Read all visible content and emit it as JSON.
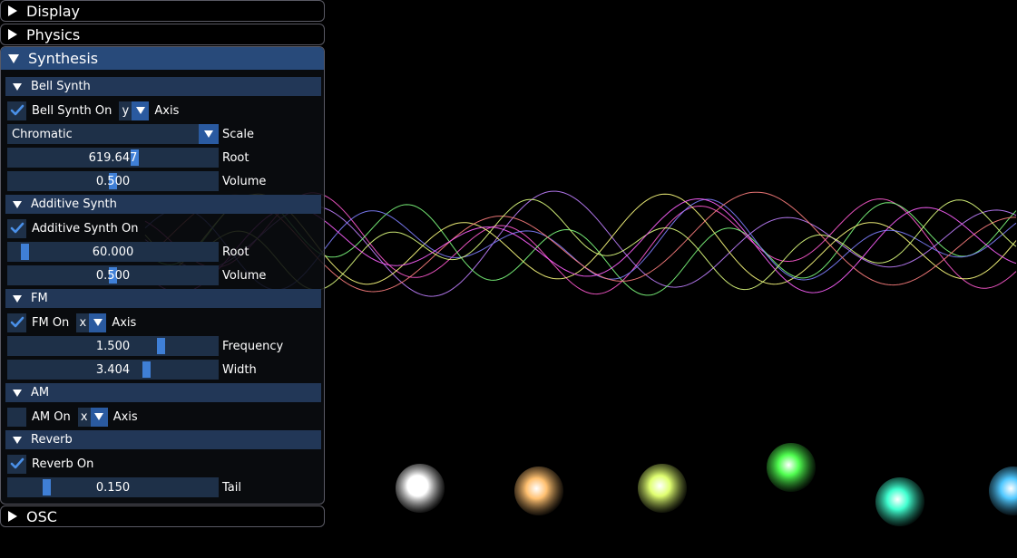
{
  "panels": {
    "display": "Display",
    "physics": "Physics",
    "synthesis": "Synthesis",
    "osc": "OSC"
  },
  "bell_synth": {
    "header": "Bell Synth",
    "enabled": true,
    "on_label": "Bell Synth On",
    "axis_value": "y",
    "axis_label": "Axis",
    "scale_value": "Chromatic",
    "scale_label": "Scale",
    "root_value": "619.647",
    "root_fraction": 0.61,
    "root_label": "Root",
    "volume_value": "0.500",
    "volume_fraction": 0.5,
    "volume_label": "Volume"
  },
  "additive_synth": {
    "header": "Additive Synth",
    "enabled": true,
    "on_label": "Additive Synth On",
    "root_value": "60.000",
    "root_fraction": 0.06,
    "root_label": "Root",
    "volume_value": "0.500",
    "volume_fraction": 0.5,
    "volume_label": "Volume"
  },
  "fm": {
    "header": "FM",
    "enabled": true,
    "on_label": "FM On",
    "axis_value": "x",
    "axis_label": "Axis",
    "frequency_value": "1.500",
    "frequency_fraction": 0.74,
    "frequency_label": "Frequency",
    "width_value": "3.404",
    "width_fraction": 0.67,
    "width_label": "Width"
  },
  "am": {
    "header": "AM",
    "enabled": false,
    "on_label": "AM On",
    "axis_value": "x",
    "axis_label": "Axis"
  },
  "reverb": {
    "header": "Reverb",
    "enabled": true,
    "on_label": "Reverb On",
    "tail_value": "0.150",
    "tail_fraction": 0.17,
    "tail_label": "Tail"
  },
  "colors": {
    "accent": "#3f7fd6",
    "header_active": "#284a7a",
    "section": "#223757",
    "frame": "#1e3048"
  },
  "scene": {
    "waves": [
      "#ff5ad0",
      "#c080ff",
      "#80ff80",
      "#ffff80",
      "#8080ff",
      "#ff8080",
      "#e0ff80",
      "#ff60ff"
    ],
    "spheres": [
      "#ffffff",
      "#ffc070",
      "#e0ff70",
      "#50ff50",
      "#40ffd0",
      "#50c8ff"
    ]
  }
}
